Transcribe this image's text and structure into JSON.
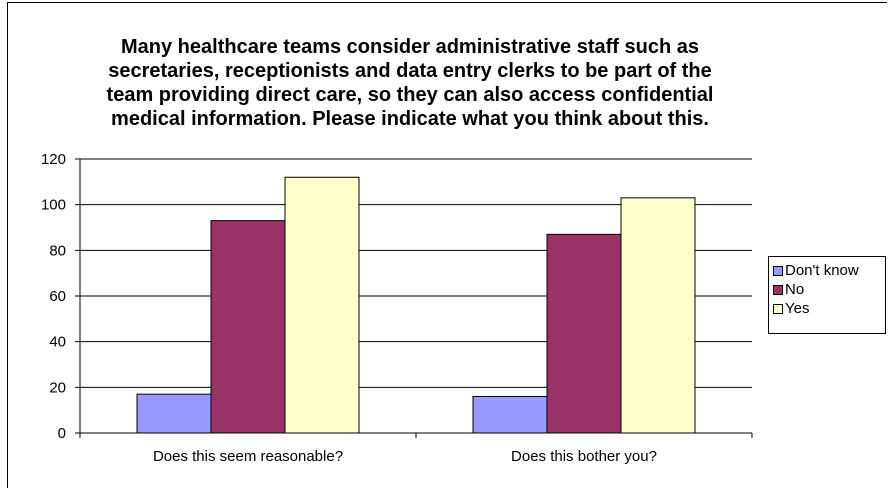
{
  "chart_data": {
    "type": "bar",
    "title": "Many healthcare teams consider administrative staff such as secretaries, receptionists and data entry clerks to be part of the team providing direct care, so they can also access confidential medical information. Please indicate what you think about this.",
    "categories": [
      "Does this seem reasonable?",
      "Does this bother you?"
    ],
    "series": [
      {
        "name": "Don't know",
        "values": [
          17,
          16
        ],
        "color": "#9999ff"
      },
      {
        "name": "No",
        "values": [
          93,
          87
        ],
        "color": "#993366"
      },
      {
        "name": "Yes",
        "values": [
          112,
          103
        ],
        "color": "#ffffcc"
      }
    ],
    "ylim": [
      0,
      120
    ],
    "yticks": [
      "0",
      "20",
      "40",
      "60",
      "80",
      "100",
      "120"
    ],
    "grid": true,
    "legend": "right"
  }
}
